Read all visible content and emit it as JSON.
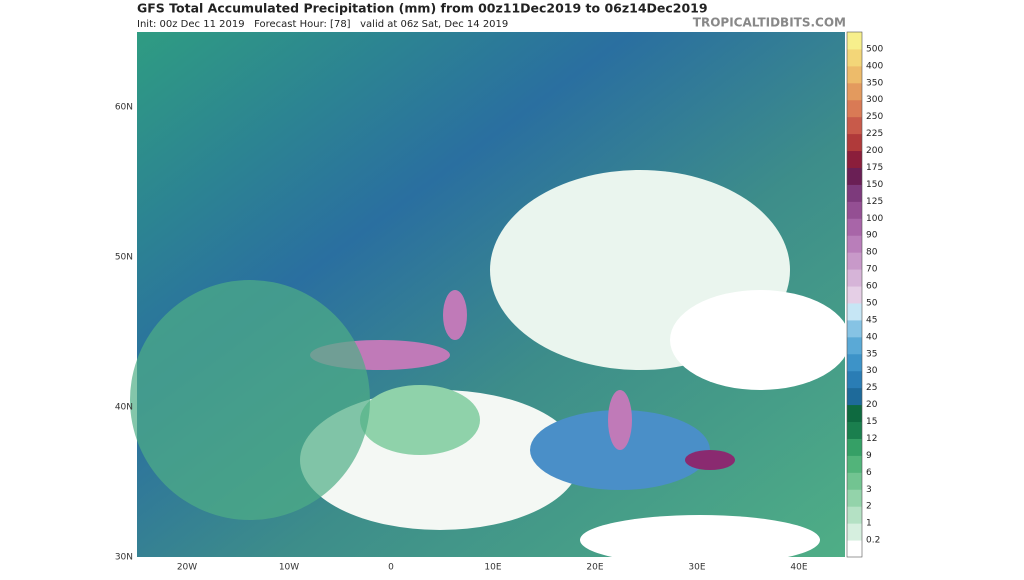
{
  "header": {
    "title": "GFS Total Accumulated Precipitation (mm) from 00z11Dec2019 to 06z14Dec2019",
    "subtitle": "Init: 00z Dec 11 2019   Forecast Hour: [78]   valid at 06z Sat, Dec 14 2019",
    "site": "TROPICALTIDBITS.COM"
  },
  "map": {
    "lat_labels": [
      "60N",
      "50N",
      "40N",
      "30N"
    ],
    "lon_labels": [
      "20W",
      "10W",
      "0",
      "10E",
      "20E",
      "30E",
      "40E"
    ]
  },
  "colorbar": {
    "labels": [
      "0.2",
      "1",
      "2",
      "3",
      "6",
      "9",
      "12",
      "15",
      "20",
      "25",
      "30",
      "35",
      "40",
      "45",
      "50",
      "60",
      "70",
      "80",
      "90",
      "100",
      "125",
      "150",
      "175",
      "200",
      "225",
      "250",
      "300",
      "350",
      "400",
      "500"
    ]
  }
}
